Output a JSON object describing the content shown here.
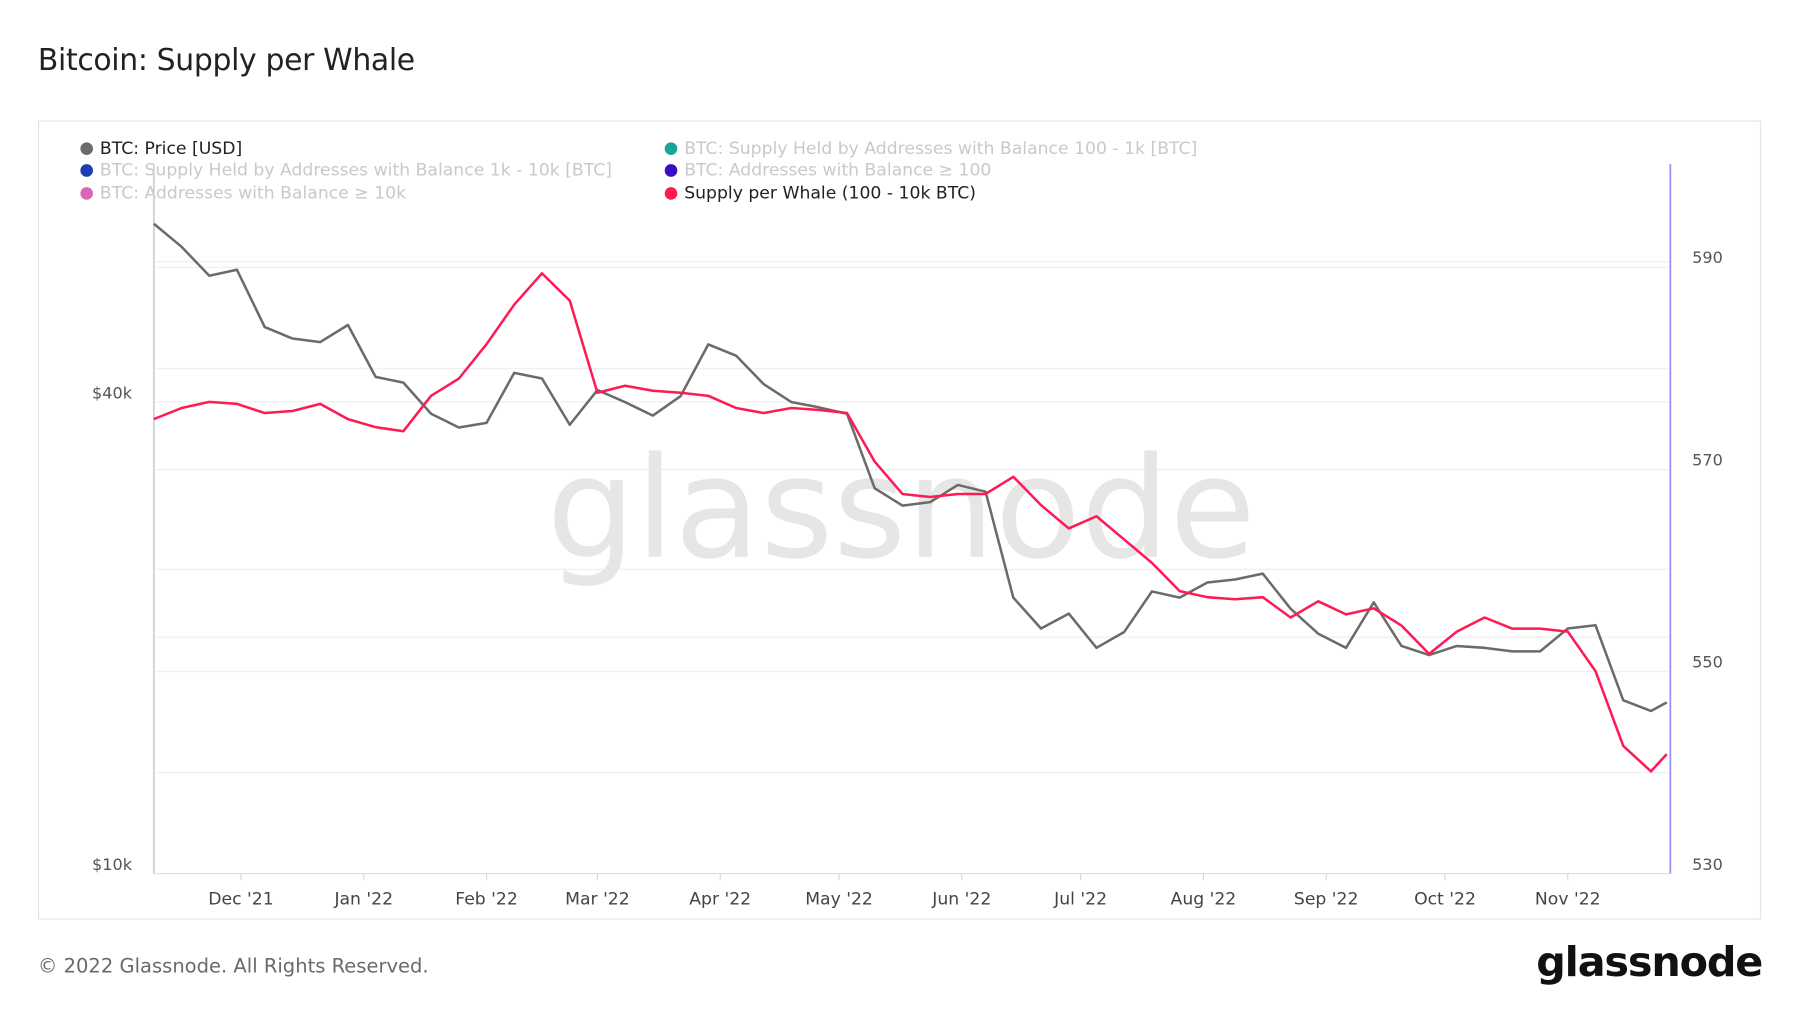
{
  "title": "Bitcoin: Supply per Whale",
  "footer": "© 2022 Glassnode. All Rights Reserved.",
  "logo": "glassnode",
  "watermark": "glassnode",
  "legend": [
    {
      "label": "BTC: Price [USD]",
      "color": "#6b6b6b",
      "active": true
    },
    {
      "label": "BTC: Supply Held by Addresses with Balance 100 - 1k [BTC]",
      "color": "#1aa39b",
      "active": false
    },
    {
      "label": "BTC: Supply Held by Addresses with Balance 1k - 10k [BTC]",
      "color": "#1c3fb0",
      "active": false
    },
    {
      "label": "BTC: Addresses with Balance ≥ 100",
      "color": "#3a0cc3",
      "active": false
    },
    {
      "label": "BTC: Addresses with Balance ≥ 10k",
      "color": "#d966b8",
      "active": false
    },
    {
      "label": "Supply per Whale (100 - 10k BTC)",
      "color": "#ff1a55",
      "active": true
    }
  ],
  "chart_data": {
    "type": "line",
    "title": "Bitcoin: Supply per Whale",
    "grid": true,
    "legend_position": "top-left",
    "x_ticks": [
      {
        "date": "2021-12-01",
        "label": "Dec '21"
      },
      {
        "date": "2022-01-01",
        "label": "Jan '22"
      },
      {
        "date": "2022-02-01",
        "label": "Feb '22"
      },
      {
        "date": "2022-03-01",
        "label": "Mar '22"
      },
      {
        "date": "2022-04-01",
        "label": "Apr '22"
      },
      {
        "date": "2022-05-01",
        "label": "May '22"
      },
      {
        "date": "2022-06-01",
        "label": "Jun '22"
      },
      {
        "date": "2022-07-01",
        "label": "Jul '22"
      },
      {
        "date": "2022-08-01",
        "label": "Aug '22"
      },
      {
        "date": "2022-09-01",
        "label": "Sep '22"
      },
      {
        "date": "2022-10-01",
        "label": "Oct '22"
      },
      {
        "date": "2022-11-01",
        "label": "Nov '22"
      }
    ],
    "y_left": {
      "scale": "log",
      "ticks": [
        {
          "value": 10000,
          "label": "$10k"
        },
        {
          "value": 40000,
          "label": "$40k"
        }
      ]
    },
    "y_right": {
      "scale": "linear",
      "range": [
        530,
        595
      ],
      "ticks": [
        {
          "value": 530,
          "label": "530"
        },
        {
          "value": 550,
          "label": "550"
        },
        {
          "value": 570,
          "label": "570"
        },
        {
          "value": 590,
          "label": "590"
        }
      ]
    },
    "dates": [
      "2021-11-09",
      "2021-11-16",
      "2021-11-23",
      "2021-11-30",
      "2021-12-07",
      "2021-12-14",
      "2021-12-21",
      "2021-12-28",
      "2022-01-04",
      "2022-01-11",
      "2022-01-18",
      "2022-01-25",
      "2022-02-01",
      "2022-02-08",
      "2022-02-15",
      "2022-02-22",
      "2022-03-01",
      "2022-03-08",
      "2022-03-15",
      "2022-03-22",
      "2022-03-29",
      "2022-04-05",
      "2022-04-12",
      "2022-04-19",
      "2022-04-26",
      "2022-05-03",
      "2022-05-10",
      "2022-05-17",
      "2022-05-24",
      "2022-05-31",
      "2022-06-07",
      "2022-06-14",
      "2022-06-21",
      "2022-06-28",
      "2022-07-05",
      "2022-07-12",
      "2022-07-19",
      "2022-07-26",
      "2022-08-02",
      "2022-08-09",
      "2022-08-16",
      "2022-08-23",
      "2022-08-30",
      "2022-09-06",
      "2022-09-13",
      "2022-09-20",
      "2022-09-27",
      "2022-10-04",
      "2022-10-11",
      "2022-10-18",
      "2022-10-25",
      "2022-11-01",
      "2022-11-08",
      "2022-11-15",
      "2022-11-22",
      "2022-11-26"
    ],
    "series": [
      {
        "name": "BTC: Price [USD]",
        "axis": "left",
        "color": "#6b6b6b",
        "values": [
          65700,
          61400,
          56400,
          57400,
          48500,
          46900,
          46400,
          48800,
          41900,
          41200,
          37600,
          36100,
          36600,
          42400,
          41700,
          36400,
          40300,
          38900,
          37400,
          39600,
          46100,
          44600,
          41000,
          38900,
          38300,
          37600,
          30200,
          28700,
          29000,
          30500,
          29900,
          21900,
          20000,
          20900,
          18900,
          19800,
          22300,
          21900,
          22900,
          23100,
          23500,
          21200,
          19700,
          18900,
          21600,
          19000,
          18500,
          19000,
          18900,
          18700,
          18700,
          20000,
          20200,
          16200,
          15700,
          16100
        ]
      },
      {
        "name": "Supply per Whale (100 - 10k BTC)",
        "axis": "right",
        "color": "#ff1a55",
        "values": [
          574.0,
          575.1,
          575.7,
          575.5,
          574.6,
          574.8,
          575.5,
          574.0,
          573.2,
          572.8,
          576.3,
          578.0,
          581.4,
          585.3,
          588.4,
          585.7,
          576.6,
          577.3,
          576.8,
          576.6,
          576.3,
          575.1,
          574.6,
          575.1,
          574.9,
          574.6,
          569.8,
          566.6,
          566.3,
          566.6,
          566.6,
          568.3,
          565.5,
          563.2,
          564.4,
          562.1,
          559.8,
          557.0,
          556.4,
          556.2,
          556.4,
          554.4,
          556.0,
          554.7,
          555.3,
          553.6,
          550.8,
          553.0,
          554.4,
          553.3,
          553.3,
          553.0,
          549.1,
          541.7,
          539.2,
          540.9
        ]
      }
    ]
  }
}
